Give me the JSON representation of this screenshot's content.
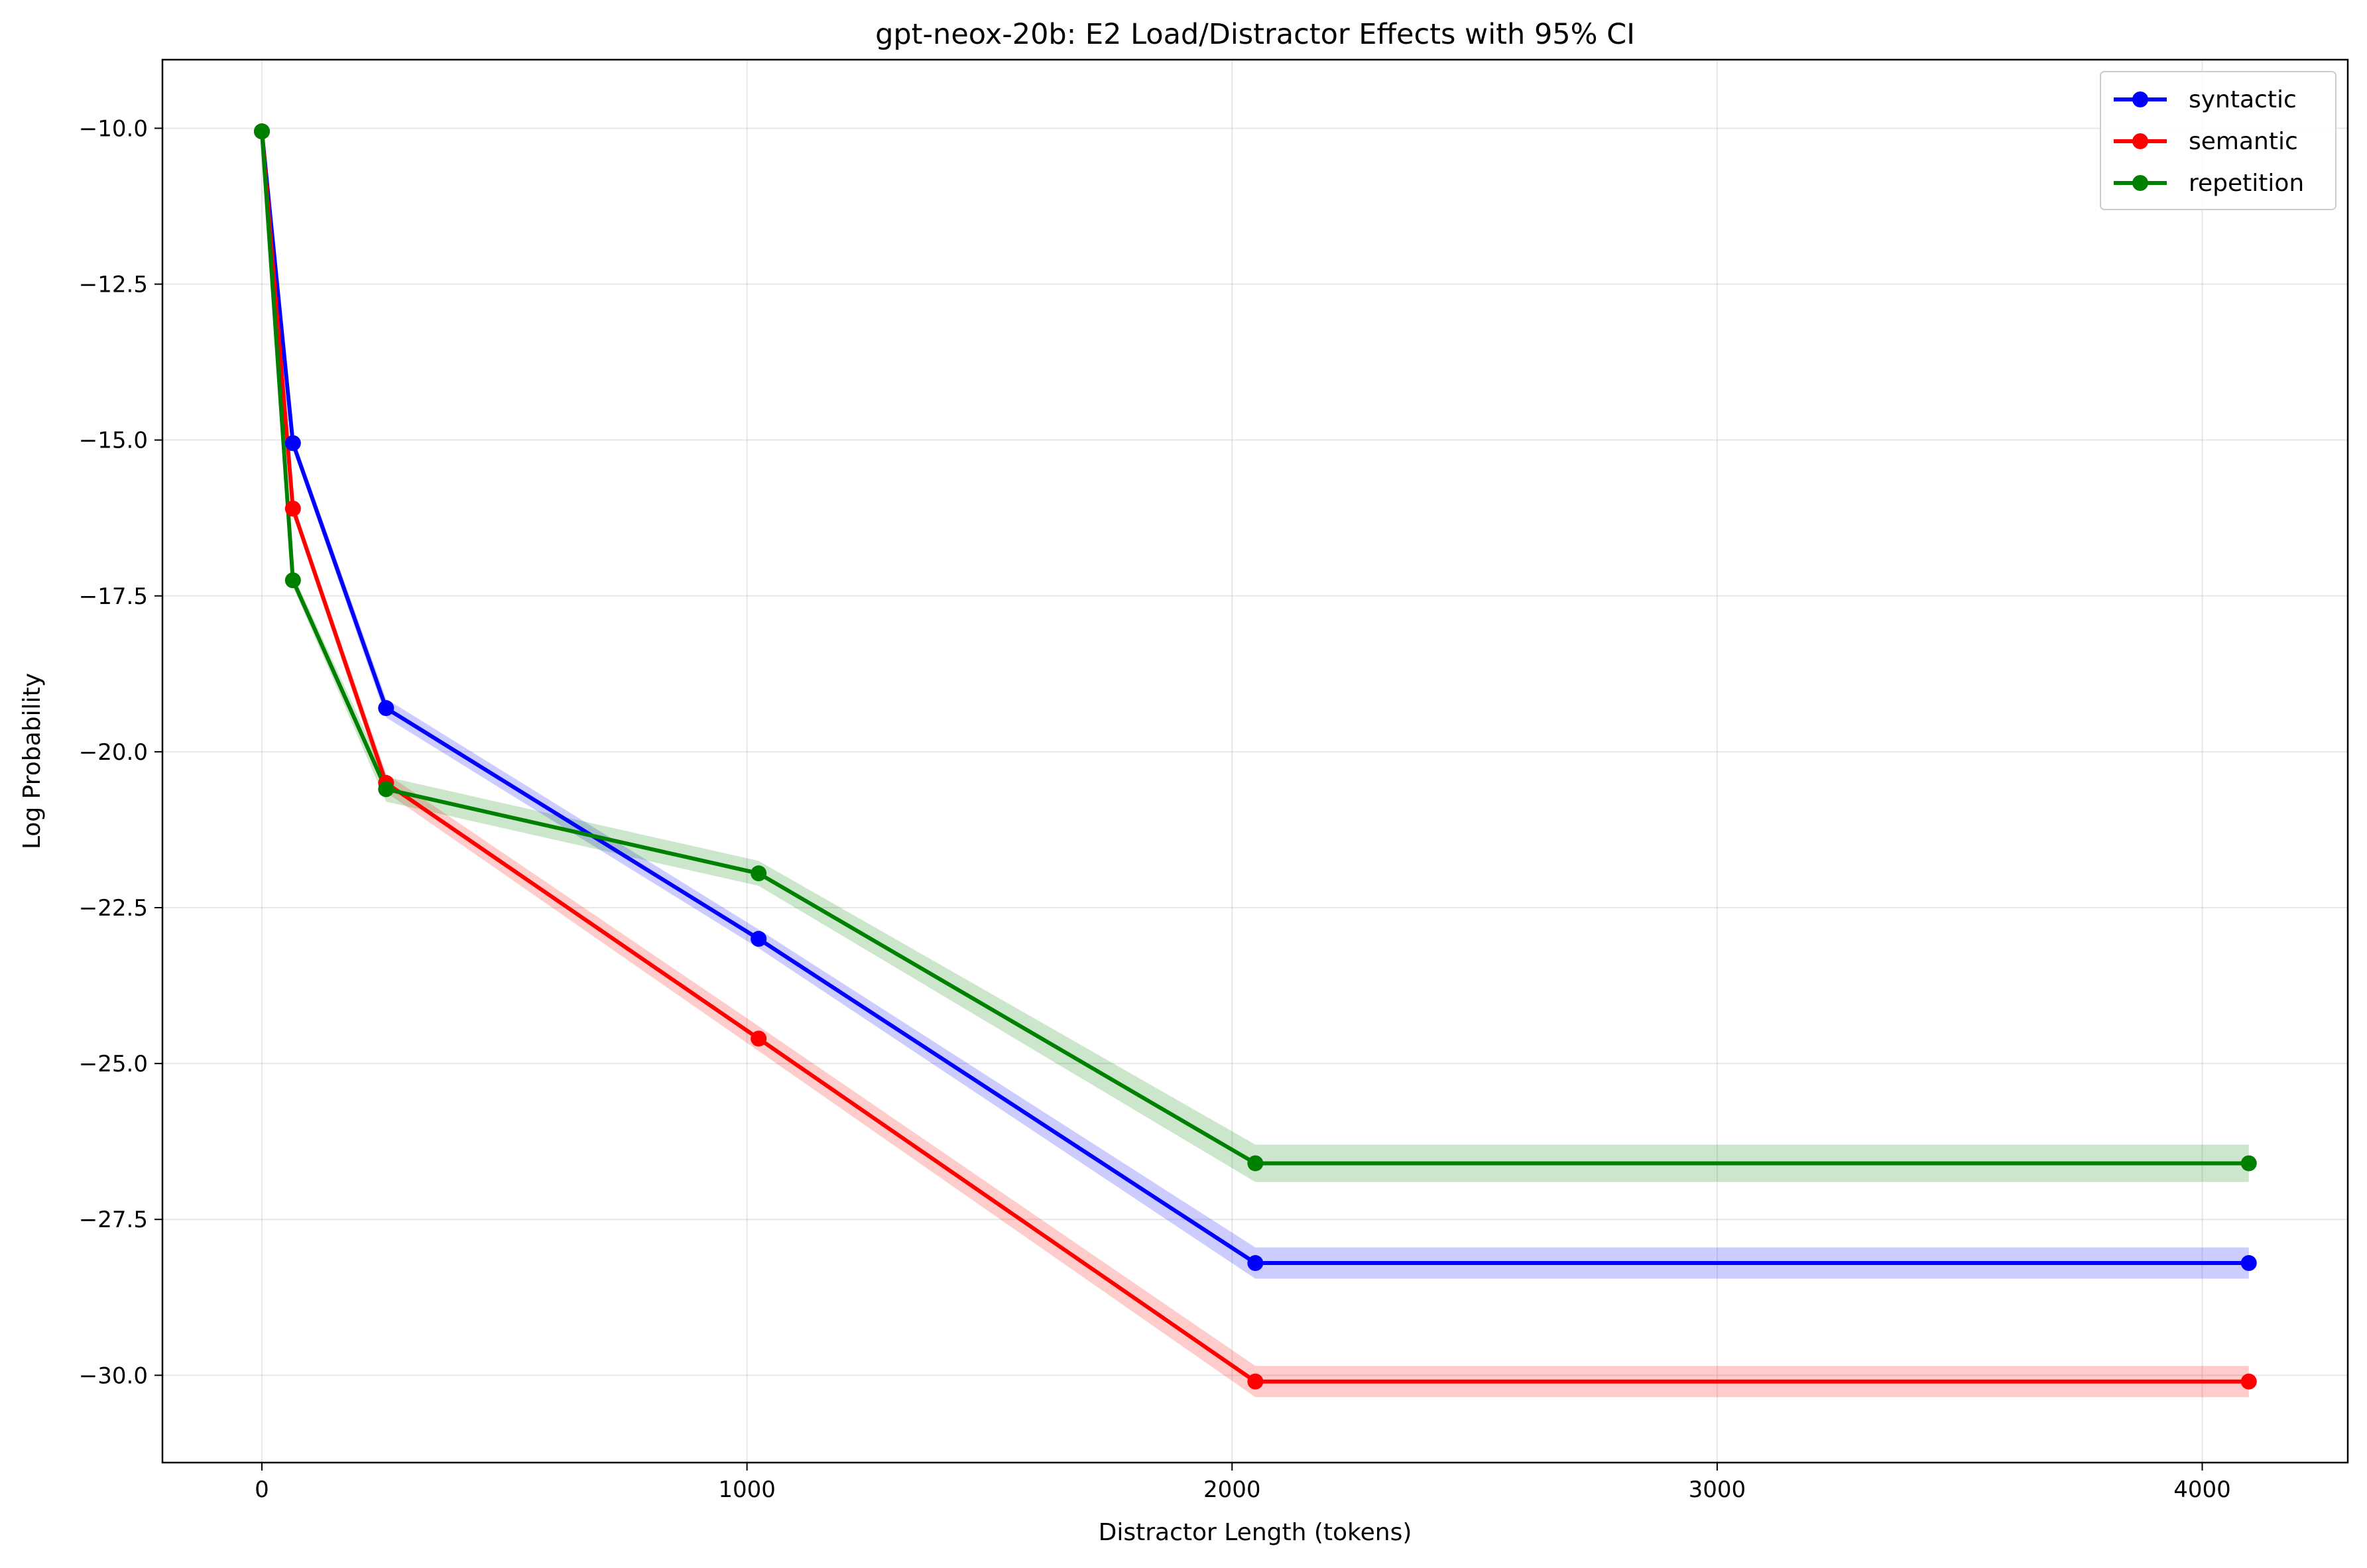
{
  "chart_data": {
    "type": "line",
    "title": "gpt-neox-20b: E2 Load/Distractor Effects with 95% CI",
    "xlabel": "Distractor Length (tokens)",
    "ylabel": "Log Probability",
    "xlim": [
      -205,
      4300
    ],
    "ylim": [
      -31.4,
      -8.9
    ],
    "xticks": [
      0,
      1000,
      2000,
      3000,
      4000
    ],
    "xtick_labels": [
      "0",
      "1000",
      "2000",
      "3000",
      "4000"
    ],
    "yticks": [
      -10.0,
      -12.5,
      -15.0,
      -17.5,
      -20.0,
      -22.5,
      -25.0,
      -27.5,
      -30.0
    ],
    "ytick_labels": [
      "−10.0",
      "−12.5",
      "−15.0",
      "−17.5",
      "−20.0",
      "−22.5",
      "−25.0",
      "−27.5",
      "−30.0"
    ],
    "grid": true,
    "legend_position": "top-right",
    "x": [
      0,
      64,
      256,
      1024,
      2048,
      4096
    ],
    "series": [
      {
        "name": "syntactic",
        "color": "#0000ff",
        "values": [
          -10.05,
          -15.05,
          -19.3,
          -23.0,
          -28.2,
          -28.2
        ],
        "ci_lower": [
          -10.1,
          -15.15,
          -19.45,
          -23.15,
          -28.45,
          -28.45
        ],
        "ci_upper": [
          -10.0,
          -14.95,
          -19.15,
          -22.85,
          -27.95,
          -27.95
        ]
      },
      {
        "name": "semantic",
        "color": "#ff0000",
        "values": [
          -10.05,
          -16.1,
          -20.5,
          -24.6,
          -30.1,
          -30.1
        ],
        "ci_lower": [
          -10.1,
          -16.2,
          -20.65,
          -24.8,
          -30.35,
          -30.35
        ],
        "ci_upper": [
          -10.0,
          -16.0,
          -20.35,
          -24.4,
          -29.85,
          -29.85
        ]
      },
      {
        "name": "repetition",
        "color": "#008000",
        "values": [
          -10.05,
          -17.25,
          -20.6,
          -21.95,
          -26.6,
          -26.6
        ],
        "ci_lower": [
          -10.1,
          -17.35,
          -20.8,
          -22.15,
          -26.9,
          -26.9
        ],
        "ci_upper": [
          -10.0,
          -17.15,
          -20.4,
          -21.75,
          -26.3,
          -26.3
        ]
      }
    ]
  }
}
